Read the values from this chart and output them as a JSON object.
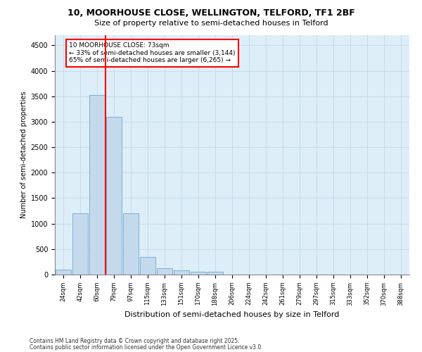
{
  "title_line1": "10, MOORHOUSE CLOSE, WELLINGTON, TELFORD, TF1 2BF",
  "title_line2": "Size of property relative to semi-detached houses in Telford",
  "xlabel": "Distribution of semi-detached houses by size in Telford",
  "ylabel": "Number of semi-detached properties",
  "categories": [
    "24sqm",
    "42sqm",
    "60sqm",
    "79sqm",
    "97sqm",
    "115sqm",
    "133sqm",
    "151sqm",
    "170sqm",
    "188sqm",
    "206sqm",
    "224sqm",
    "242sqm",
    "261sqm",
    "279sqm",
    "297sqm",
    "315sqm",
    "333sqm",
    "352sqm",
    "370sqm",
    "388sqm"
  ],
  "values": [
    100,
    1200,
    3520,
    3100,
    1200,
    350,
    120,
    80,
    50,
    50,
    0,
    0,
    0,
    0,
    0,
    0,
    0,
    0,
    0,
    0,
    0
  ],
  "bar_color": "#c5d9ed",
  "bar_edge_color": "#7aafd4",
  "red_line_x": 2.5,
  "annotation_title": "10 MOORHOUSE CLOSE: 73sqm",
  "annotation_line1": "← 33% of semi-detached houses are smaller (3,144)",
  "annotation_line2": "65% of semi-detached houses are larger (6,265) →",
  "ylim": [
    0,
    4700
  ],
  "yticks": [
    0,
    500,
    1000,
    1500,
    2000,
    2500,
    3000,
    3500,
    4000,
    4500
  ],
  "footer_line1": "Contains HM Land Registry data © Crown copyright and database right 2025.",
  "footer_line2": "Contains public sector information licensed under the Open Government Licence v3.0.",
  "background_color": "#ffffff",
  "grid_color": "#c8daea",
  "plot_bg_color": "#ddeef8"
}
